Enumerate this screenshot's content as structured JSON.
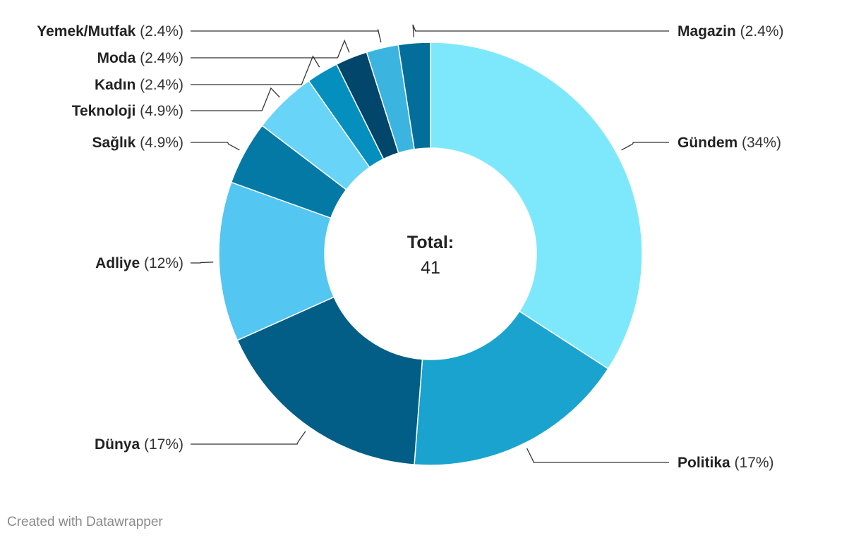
{
  "chart_data": {
    "type": "pie",
    "variant": "donut",
    "categories": [
      "Gündem",
      "Politika",
      "Dünya",
      "Adliye",
      "Sağlık",
      "Teknoloji",
      "Kadın",
      "Moda",
      "Yemek/Mutfak",
      "Magazin"
    ],
    "values": [
      14,
      7,
      7,
      5,
      2,
      2,
      1,
      1,
      1,
      1
    ],
    "percent_labels": [
      "(34%)",
      "(17%)",
      "(17%)",
      "(12%)",
      "(4.9%)",
      "(4.9%)",
      "(2.4%)",
      "(2.4%)",
      "(2.4%)",
      "(2.4%)"
    ],
    "colors": [
      "#7de8fb",
      "#1aa3cf",
      "#025e86",
      "#53c6f2",
      "#0479a6",
      "#68d4f7",
      "#058fbf",
      "#02466b",
      "#3bb4e0",
      "#026e99"
    ],
    "center_title": "Total:",
    "center_value": "41"
  },
  "footer": {
    "credit": "Created with Datawrapper"
  }
}
